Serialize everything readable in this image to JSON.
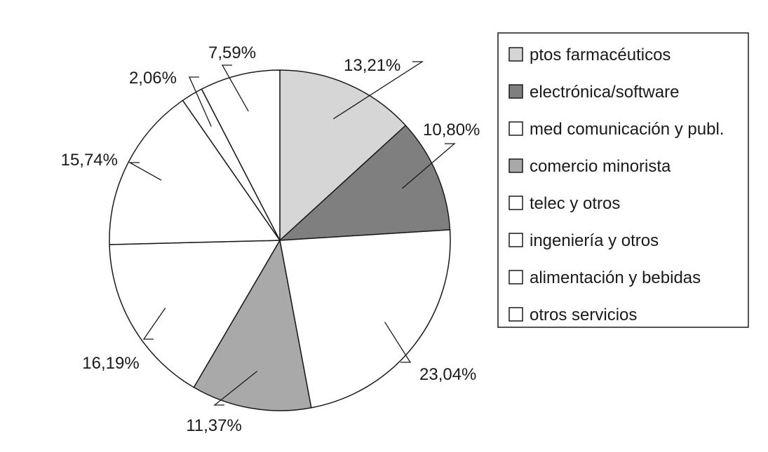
{
  "chart_data": {
    "type": "pie",
    "title": "",
    "start": "12 o'clock",
    "direction": "clockwise",
    "legend_position": "right",
    "slices": [
      {
        "label": "ptos farmacéuticos",
        "value": 13.21,
        "display": "13,21%",
        "color": "#d6d6d6"
      },
      {
        "label": "electrónica/software",
        "value": 10.8,
        "display": "10,80%",
        "color": "#7f7f7f"
      },
      {
        "label": "med comunicación y publ.",
        "value": 23.04,
        "display": "23,04%",
        "color": "#ffffff"
      },
      {
        "label": "comercio minorista",
        "value": 11.37,
        "display": "11,37%",
        "color": "#a9a9a9"
      },
      {
        "label": "telec y otros",
        "value": 16.19,
        "display": "16,19%",
        "color": "#ffffff"
      },
      {
        "label": "ingeniería y otros",
        "value": 15.74,
        "display": "15,74%",
        "color": "#ffffff"
      },
      {
        "label": "alimentación y bebidas",
        "value": 2.06,
        "display": "2,06%",
        "color": "#ffffff"
      },
      {
        "label": "otros servicios",
        "value": 7.59,
        "display": "7,59%",
        "color": "#ffffff"
      }
    ]
  }
}
